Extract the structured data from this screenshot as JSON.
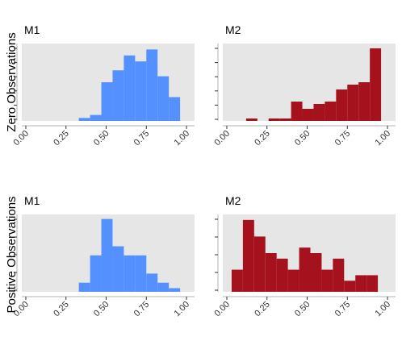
{
  "chart_data": [
    {
      "type": "bar",
      "row_label": "Zero Observations",
      "title": "M1",
      "x_ticks": [
        "0.00",
        "0.25",
        "0.50",
        "0.75",
        "1.00"
      ],
      "xlim": [
        -0.025,
        1.05
      ],
      "bin_width": 0.07,
      "bin_starts": [
        0.33,
        0.4,
        0.47,
        0.54,
        0.61,
        0.68,
        0.75,
        0.82,
        0.89
      ],
      "values": [
        1,
        2,
        13,
        17,
        22,
        20,
        24,
        15,
        8
      ],
      "ylim": [
        0,
        26
      ],
      "y_ticks": 6,
      "color": "#5590ff",
      "background": "#e6e6e6"
    },
    {
      "type": "bar",
      "row_label": "Zero Observations",
      "title": "M2",
      "x_ticks": [
        "0.00",
        "0.25",
        "0.50",
        "0.75",
        "1.00"
      ],
      "xlim": [
        -0.025,
        1.05
      ],
      "bin_width": 0.07,
      "bin_starts": [
        0.12,
        0.19,
        0.26,
        0.33,
        0.4,
        0.47,
        0.54,
        0.61,
        0.68,
        0.75,
        0.82,
        0.89
      ],
      "values": [
        1,
        0,
        1,
        1,
        8,
        5,
        7,
        8,
        13,
        15,
        16,
        30
      ],
      "ylim": [
        0,
        32
      ],
      "y_ticks": 6,
      "color": "#a5121e",
      "background": "#e6e6e6"
    },
    {
      "type": "bar",
      "row_label": "Positive Observations",
      "title": "M1",
      "x_ticks": [
        "0.00",
        "0.25",
        "0.50",
        "0.75",
        "1.00"
      ],
      "xlim": [
        -0.025,
        1.05
      ],
      "bin_width": 0.07,
      "bin_starts": [
        0.33,
        0.4,
        0.47,
        0.54,
        0.61,
        0.68,
        0.75,
        0.82,
        0.89
      ],
      "values": [
        1,
        4,
        8,
        5,
        4,
        4,
        2,
        1,
        0.4
      ],
      "ylim": [
        0,
        8.5
      ],
      "y_ticks": 5,
      "color": "#5590ff",
      "background": "#e6e6e6"
    },
    {
      "type": "bar",
      "row_label": "Positive Observations",
      "title": "M2",
      "x_ticks": [
        "0.00",
        "0.25",
        "0.50",
        "0.75",
        "1.00"
      ],
      "xlim": [
        -0.025,
        1.05
      ],
      "bin_width": 0.07,
      "bin_starts": [
        0.03,
        0.1,
        0.17,
        0.24,
        0.31,
        0.38,
        0.45,
        0.52,
        0.59,
        0.66,
        0.73,
        0.8,
        0.87
      ],
      "values": [
        4,
        13,
        10,
        7,
        6,
        4,
        8,
        7,
        4,
        6,
        2,
        3,
        3
      ],
      "ylim": [
        0,
        14
      ],
      "y_ticks": 5,
      "color": "#a5121e",
      "background": "#e6e6e6"
    }
  ],
  "row_labels": [
    "Zero Observations",
    "Positive Observations"
  ],
  "panel_titles": [
    "M1",
    "M2",
    "M1",
    "M2"
  ]
}
